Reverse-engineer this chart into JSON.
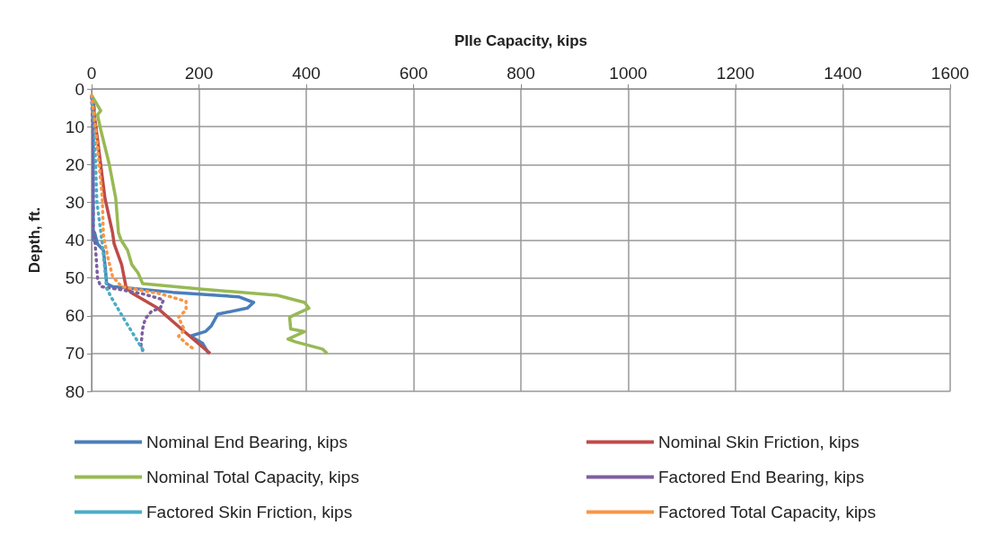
{
  "chart_data": {
    "type": "line",
    "xlabel": "PIle Capacity, kips",
    "ylabel": "Depth, ft.",
    "xlim": [
      0,
      1600
    ],
    "xticks": [
      0,
      200,
      400,
      600,
      800,
      1000,
      1200,
      1400,
      1600
    ],
    "ylim": [
      80,
      0
    ],
    "yticks": [
      0,
      10,
      20,
      30,
      40,
      50,
      60,
      70,
      80
    ],
    "grid": true,
    "legend": "bottom",
    "marker": "none",
    "series": [
      {
        "name": "Nominal End Bearing, kips",
        "color": "#4a7ebb",
        "line_style": "solid",
        "x": [
          0,
          5,
          3,
          3,
          5.6,
          11,
          22,
          25,
          28,
          39,
          151,
          274,
          302,
          290,
          235,
          223,
          212,
          184,
          207,
          218
        ],
        "values": [
          2,
          5,
          11,
          40,
          38,
          41,
          42.7,
          46.5,
          51.5,
          52.3,
          53.8,
          55,
          56.5,
          58,
          59.6,
          62.7,
          64.2,
          65.4,
          67.3,
          70
        ]
      },
      {
        "name": "Nominal Skin Friction, kips",
        "color": "#be4b48",
        "line_style": "solid",
        "x": [
          0,
          8,
          25,
          39,
          42,
          56,
          64,
          73,
          123,
          173,
          221
        ],
        "values": [
          2,
          10,
          29,
          38,
          41,
          46.5,
          52.3,
          53.8,
          58,
          64.2,
          70
        ]
      },
      {
        "name": "Nominal Total Capacity, kips",
        "color": "#98b954",
        "line_style": "solid",
        "x": [
          0,
          17,
          11,
          17,
          33,
          45,
          50,
          55,
          67,
          75,
          87,
          95,
          207,
          346,
          397,
          405,
          369,
          371,
          397,
          366,
          380,
          430,
          439
        ],
        "values": [
          1.7,
          5.8,
          6.9,
          10.8,
          20,
          29,
          38,
          40,
          42.7,
          46.5,
          48.8,
          51.5,
          53,
          54.6,
          56.5,
          58,
          60.4,
          63.5,
          64.2,
          66.2,
          66.9,
          68.8,
          70
        ]
      },
      {
        "name": "Factored End Bearing, kips",
        "color": "#7d5fa0",
        "line_style": "dotted",
        "x": [
          0,
          3,
          3,
          5.6,
          8,
          11,
          17,
          50,
          95,
          134,
          128,
          112,
          100,
          95,
          92,
          95
        ],
        "values": [
          2,
          13,
          38,
          39.6,
          43.5,
          50,
          52.3,
          53,
          54.2,
          55.8,
          58,
          58.8,
          60.8,
          63.5,
          68,
          69.2
        ]
      },
      {
        "name": "Factored Skin Friction, kips",
        "color": "#4bacc6",
        "line_style": "dotted",
        "x": [
          0,
          5,
          10,
          20,
          25,
          28,
          36,
          61,
          98
        ],
        "values": [
          2,
          10,
          30,
          41,
          48,
          52.7,
          55,
          61,
          69.6
        ]
      },
      {
        "name": "Factored Total Capacity, kips",
        "color": "#f79646",
        "line_style": "dotted",
        "x": [
          0,
          8,
          20,
          22,
          31,
          39,
          56,
          128,
          176,
          176,
          162,
          173,
          162,
          176,
          190
        ],
        "values": [
          1.7,
          11,
          29,
          38.8,
          45,
          49.6,
          52.3,
          54.2,
          56.2,
          58.5,
          60.4,
          63.8,
          65.4,
          67.3,
          68.8
        ]
      }
    ]
  }
}
